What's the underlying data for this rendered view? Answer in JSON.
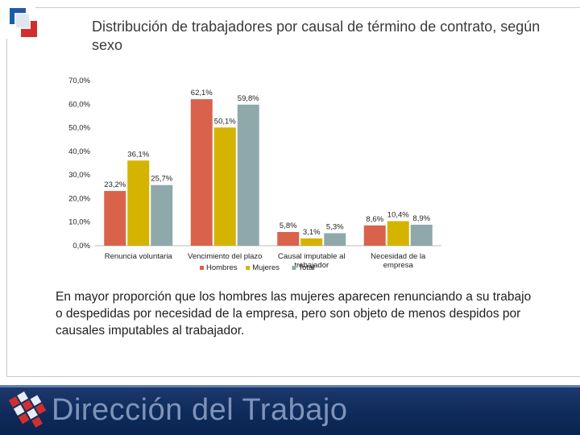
{
  "title": "Distribución de trabajadores por causal de término de contrato, según sexo",
  "caption": "En mayor proporción que los hombres las mujeres aparecen renunciando a su trabajo o despedidas por necesidad de la empresa, pero son objeto de menos despidos por causales imputables al trabajador.",
  "footer": {
    "brand": "Dirección del Trabajo"
  },
  "colors": {
    "hombres": "#d9634a",
    "mujeres": "#d4b400",
    "total": "#8fa9ab"
  },
  "chart_data": {
    "type": "bar",
    "title": "",
    "xlabel": "",
    "ylabel": "",
    "ylim": [
      0,
      70
    ],
    "yticks": [
      "0,0%",
      "10,0%",
      "20,0%",
      "30,0%",
      "40,0%",
      "50,0%",
      "60,0%",
      "70,0%"
    ],
    "categories": [
      [
        "Renuncia voluntaria"
      ],
      [
        "Vencimiento del plazo"
      ],
      [
        "Causal imputable al",
        "trabajador"
      ],
      [
        "Necesidad de la",
        "empresa"
      ]
    ],
    "series": [
      {
        "name": "Hombres",
        "values": [
          23.2,
          62.1,
          5.8,
          8.6
        ],
        "labels": [
          "23,2%",
          "62,1%",
          "5,8%",
          "8,6%"
        ]
      },
      {
        "name": "Mujeres",
        "values": [
          36.1,
          50.1,
          3.1,
          10.4
        ],
        "labels": [
          "36,1%",
          "50,1%",
          "3,1%",
          "10,4%"
        ]
      },
      {
        "name": "Total",
        "values": [
          25.7,
          59.8,
          5.3,
          8.9
        ],
        "labels": [
          "25,7%",
          "59,8%",
          "5,3%",
          "8,9%"
        ]
      }
    ],
    "legend": [
      "Hombres",
      "Mujeres",
      "Total"
    ],
    "legend_position": "bottom-center",
    "grid": false
  }
}
